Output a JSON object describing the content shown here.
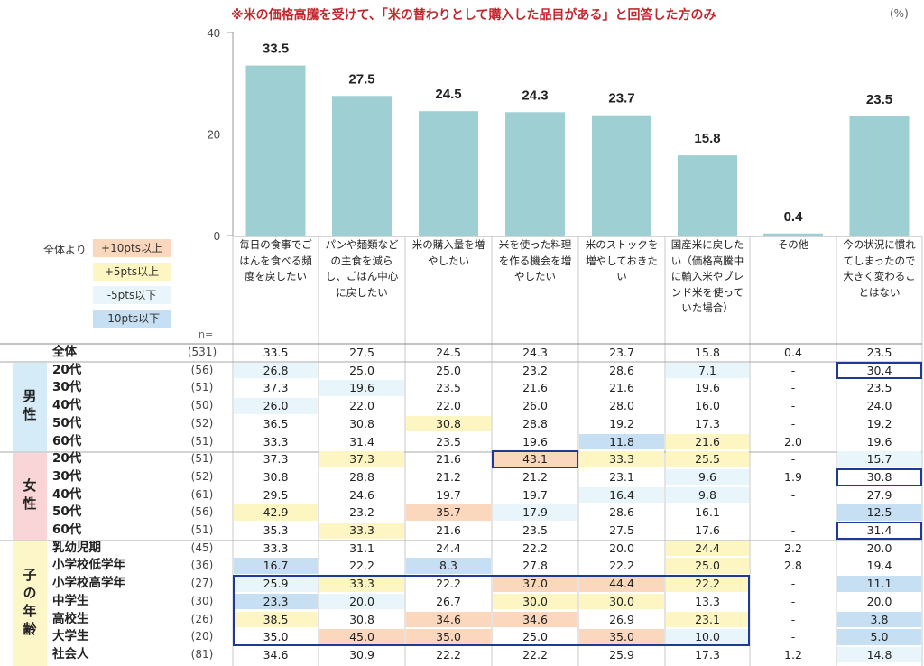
{
  "note": "※米の価格高騰を受けて、「米の替わりとして購入した品目がある」と回答した方のみ",
  "unit": "(%)",
  "chart_data": {
    "type": "bar",
    "categories": [
      "毎日の食事でごはんを食べる頻度を戻したい",
      "パンや麺類などの主食を減らし、ごはん中心に戻したい",
      "米の購入量を増やしたい",
      "米を使った料理を作る機会を増やしたい",
      "米のストックを増やしておきたい",
      "国産米に戻したい（価格高騰中に輸入米やブレンド米を使っていた場合）",
      "その他",
      "今の状況に慣れてしまったので大きく変わることはない"
    ],
    "values": [
      33.5,
      27.5,
      24.5,
      24.3,
      23.7,
      15.8,
      0.4,
      23.5
    ],
    "value_labels": [
      "33.5",
      "27.5",
      "24.5",
      "24.3",
      "23.7",
      "15.8",
      "0.4",
      "23.5"
    ],
    "ylim": [
      0,
      40
    ],
    "yticks": [
      "0",
      "20",
      "40"
    ],
    "bar_color": "#9ecfd3"
  },
  "legend": {
    "title": "全体より",
    "items": [
      {
        "label": "+10pts以上",
        "color": "#fbd8bd"
      },
      {
        "label": "+5pts以上",
        "color": "#fdf6c3"
      },
      {
        "label": "-5pts以下",
        "color": "#e8f6fb"
      },
      {
        "label": "-10pts以下",
        "color": "#c7dff3"
      }
    ]
  },
  "n_label": "n=",
  "groups": [
    {
      "label": "男性",
      "color": "#d6ebf8"
    },
    {
      "label": "女性",
      "color": "#f9d5d7"
    },
    {
      "label": "子の年齢",
      "color": "#fdf6c8"
    }
  ],
  "table": [
    {
      "label": "全体",
      "n": "(531)",
      "values": [
        "33.5",
        "27.5",
        "24.5",
        "24.3",
        "23.7",
        "15.8",
        "0.4",
        "23.5"
      ],
      "shade": [
        0,
        0,
        0,
        0,
        0,
        0,
        0,
        0
      ]
    },
    {
      "label": "20代",
      "n": "(56)",
      "values": [
        "26.8",
        "25.0",
        "25.0",
        "23.2",
        "28.6",
        "7.1",
        "-",
        "30.4"
      ],
      "shade": [
        3,
        0,
        0,
        0,
        0,
        3,
        0,
        0
      ]
    },
    {
      "label": "30代",
      "n": "(51)",
      "values": [
        "37.3",
        "19.6",
        "23.5",
        "21.6",
        "21.6",
        "19.6",
        "-",
        "23.5"
      ],
      "shade": [
        0,
        3,
        0,
        0,
        0,
        0,
        0,
        0
      ]
    },
    {
      "label": "40代",
      "n": "(50)",
      "values": [
        "26.0",
        "22.0",
        "22.0",
        "26.0",
        "28.0",
        "16.0",
        "-",
        "24.0"
      ],
      "shade": [
        3,
        0,
        0,
        0,
        0,
        0,
        0,
        0
      ]
    },
    {
      "label": "50代",
      "n": "(52)",
      "values": [
        "36.5",
        "30.8",
        "30.8",
        "28.8",
        "19.2",
        "17.3",
        "-",
        "19.2"
      ],
      "shade": [
        0,
        0,
        2,
        0,
        0,
        0,
        0,
        0
      ]
    },
    {
      "label": "60代",
      "n": "(51)",
      "values": [
        "33.3",
        "31.4",
        "23.5",
        "19.6",
        "11.8",
        "21.6",
        "2.0",
        "19.6"
      ],
      "shade": [
        0,
        0,
        0,
        0,
        4,
        2,
        0,
        0
      ]
    },
    {
      "label": "20代",
      "n": "(51)",
      "values": [
        "37.3",
        "37.3",
        "21.6",
        "43.1",
        "33.3",
        "25.5",
        "-",
        "15.7"
      ],
      "shade": [
        0,
        2,
        0,
        1,
        2,
        2,
        0,
        3
      ]
    },
    {
      "label": "30代",
      "n": "(52)",
      "values": [
        "30.8",
        "28.8",
        "21.2",
        "21.2",
        "23.1",
        "9.6",
        "1.9",
        "30.8"
      ],
      "shade": [
        0,
        0,
        0,
        0,
        0,
        3,
        0,
        0
      ]
    },
    {
      "label": "40代",
      "n": "(61)",
      "values": [
        "29.5",
        "24.6",
        "19.7",
        "19.7",
        "16.4",
        "9.8",
        "-",
        "27.9"
      ],
      "shade": [
        0,
        0,
        0,
        0,
        3,
        3,
        0,
        0
      ]
    },
    {
      "label": "50代",
      "n": "(56)",
      "values": [
        "42.9",
        "23.2",
        "35.7",
        "17.9",
        "28.6",
        "16.1",
        "-",
        "12.5"
      ],
      "shade": [
        2,
        0,
        1,
        3,
        0,
        0,
        0,
        4
      ]
    },
    {
      "label": "60代",
      "n": "(51)",
      "values": [
        "35.3",
        "33.3",
        "21.6",
        "23.5",
        "27.5",
        "17.6",
        "-",
        "31.4"
      ],
      "shade": [
        0,
        2,
        0,
        0,
        0,
        0,
        0,
        0
      ]
    },
    {
      "label": "乳幼児期",
      "n": "(45)",
      "values": [
        "33.3",
        "31.1",
        "24.4",
        "22.2",
        "20.0",
        "24.4",
        "2.2",
        "20.0"
      ],
      "shade": [
        0,
        0,
        0,
        0,
        0,
        2,
        0,
        0
      ]
    },
    {
      "label": "小学校低学年",
      "n": "(36)",
      "values": [
        "16.7",
        "22.2",
        "8.3",
        "27.8",
        "22.2",
        "25.0",
        "2.8",
        "19.4"
      ],
      "shade": [
        4,
        0,
        4,
        0,
        0,
        2,
        0,
        0
      ]
    },
    {
      "label": "小学校高学年",
      "n": "(27)",
      "values": [
        "25.9",
        "33.3",
        "22.2",
        "37.0",
        "44.4",
        "22.2",
        "-",
        "11.1"
      ],
      "shade": [
        3,
        2,
        0,
        1,
        1,
        2,
        0,
        4
      ]
    },
    {
      "label": "中学生",
      "n": "(30)",
      "values": [
        "23.3",
        "20.0",
        "26.7",
        "30.0",
        "30.0",
        "13.3",
        "-",
        "20.0"
      ],
      "shade": [
        4,
        3,
        0,
        2,
        2,
        0,
        0,
        0
      ]
    },
    {
      "label": "高校生",
      "n": "(26)",
      "values": [
        "38.5",
        "30.8",
        "34.6",
        "34.6",
        "26.9",
        "23.1",
        "-",
        "3.8"
      ],
      "shade": [
        2,
        0,
        1,
        1,
        0,
        2,
        0,
        4
      ]
    },
    {
      "label": "大学生",
      "n": "(20)",
      "values": [
        "35.0",
        "45.0",
        "35.0",
        "25.0",
        "35.0",
        "10.0",
        "-",
        "5.0"
      ],
      "shade": [
        0,
        1,
        1,
        0,
        1,
        3,
        0,
        4
      ]
    },
    {
      "label": "社会人",
      "n": "(81)",
      "values": [
        "34.6",
        "30.9",
        "22.2",
        "22.2",
        "25.9",
        "17.3",
        "1.2",
        "14.8"
      ],
      "shade": [
        0,
        0,
        0,
        0,
        0,
        0,
        0,
        3
      ]
    }
  ]
}
